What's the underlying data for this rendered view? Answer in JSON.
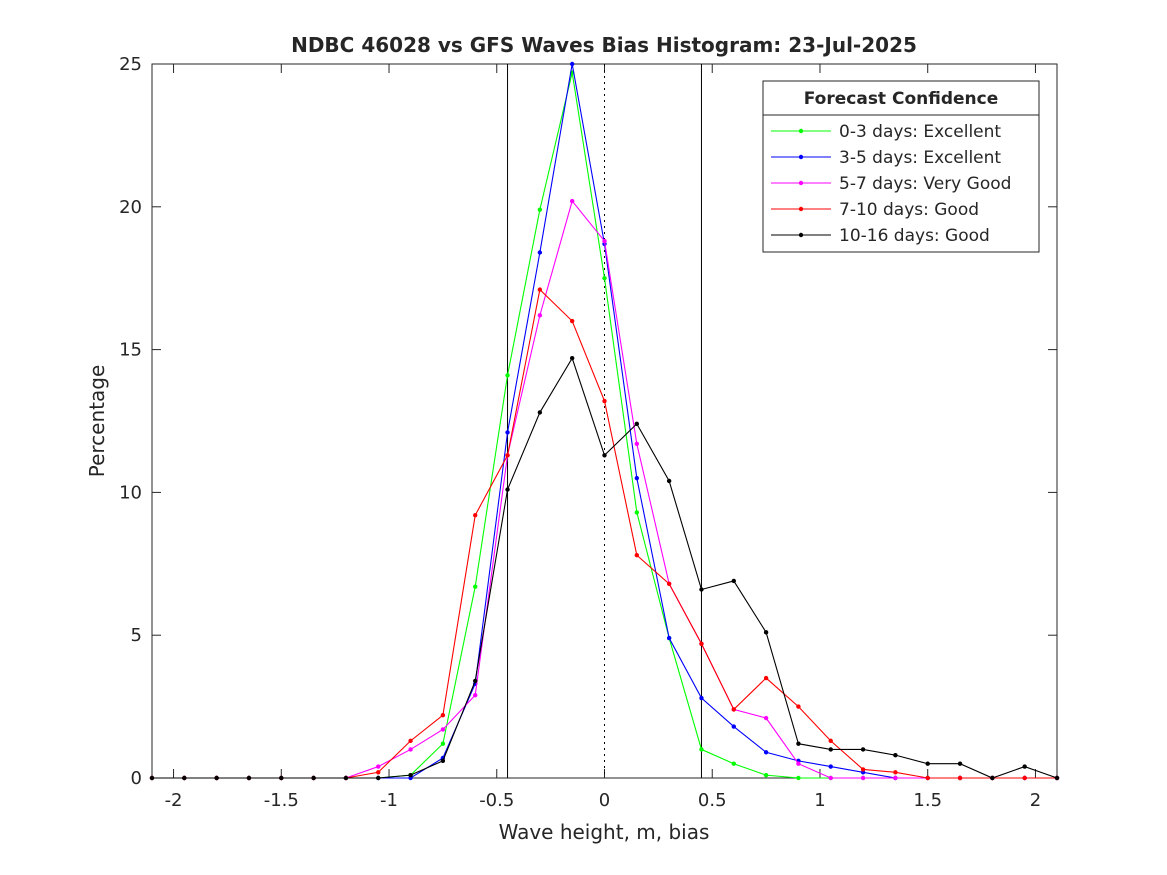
{
  "chart_data": {
    "type": "line",
    "title": "NDBC 46028 vs GFS Waves Bias Histogram: 23-Jul-2025",
    "xlabel": "Wave height, m, bias",
    "ylabel": "Percentage",
    "xlim": [
      -2.1,
      2.1
    ],
    "ylim": [
      0,
      25
    ],
    "xticks": [
      -2,
      -1.5,
      -1,
      -0.5,
      0,
      0.5,
      1,
      1.5,
      2
    ],
    "xtick_labels": [
      "-2",
      "-1.5",
      "-1",
      "-0.5",
      "0",
      "0.5",
      "1",
      "1.5",
      "2"
    ],
    "yticks": [
      0,
      5,
      10,
      15,
      20,
      25
    ],
    "ytick_labels": [
      "0",
      "5",
      "10",
      "15",
      "20",
      "25"
    ],
    "grid": false,
    "vertical_lines": [
      {
        "x": -0.45,
        "style": "solid"
      },
      {
        "x": 0,
        "style": "dotted"
      },
      {
        "x": 0.45,
        "style": "solid"
      }
    ],
    "legend": {
      "title": "Forecast Confidence",
      "placement": "top-right"
    },
    "x": [
      -2.1,
      -1.95,
      -1.8,
      -1.65,
      -1.5,
      -1.35,
      -1.2,
      -1.05,
      -0.9,
      -0.75,
      -0.6,
      -0.45,
      -0.3,
      -0.15,
      0,
      0.15,
      0.3,
      0.45,
      0.6,
      0.75,
      0.9,
      1.05,
      1.2,
      1.35,
      1.5,
      1.65,
      1.8,
      1.95,
      2.1
    ],
    "series": [
      {
        "name": "0-3 days: Excellent",
        "color": "#00ff00",
        "values": [
          0,
          0,
          0,
          0,
          0,
          0,
          0,
          0,
          0.1,
          1.2,
          6.7,
          14.1,
          19.9,
          24.7,
          17.5,
          9.3,
          4.9,
          1.0,
          0.5,
          0.1,
          0,
          0,
          0,
          0,
          0,
          0,
          0,
          0,
          0
        ]
      },
      {
        "name": "3-5 days: Excellent",
        "color": "#0000ff",
        "values": [
          0,
          0,
          0,
          0,
          0,
          0,
          0,
          0,
          0,
          0.7,
          3.3,
          12.1,
          18.4,
          25.0,
          18.7,
          10.5,
          4.9,
          2.8,
          1.8,
          0.9,
          0.6,
          0.4,
          0.2,
          0,
          0,
          0,
          0,
          0,
          0
        ]
      },
      {
        "name": "5-7 days: Very Good",
        "color": "#ff00ff",
        "values": [
          0,
          0,
          0,
          0,
          0,
          0,
          0,
          0.4,
          1.0,
          1.7,
          2.9,
          11.3,
          16.2,
          20.2,
          18.8,
          11.7,
          6.8,
          4.7,
          2.4,
          2.1,
          0.5,
          0,
          0,
          0,
          0,
          0,
          0,
          0,
          0
        ]
      },
      {
        "name": "7-10 days: Good",
        "color": "#ff0000",
        "values": [
          0,
          0,
          0,
          0,
          0,
          0,
          0,
          0.2,
          1.3,
          2.2,
          9.2,
          11.3,
          17.1,
          16.0,
          13.2,
          7.8,
          6.8,
          4.7,
          2.4,
          3.5,
          2.5,
          1.3,
          0.3,
          0.2,
          0,
          0,
          0,
          0,
          0
        ]
      },
      {
        "name": "10-16 days: Good",
        "color": "#000000",
        "values": [
          0,
          0,
          0,
          0,
          0,
          0,
          0,
          0,
          0.1,
          0.6,
          3.4,
          10.1,
          12.8,
          14.7,
          11.3,
          12.4,
          10.4,
          6.6,
          6.9,
          5.1,
          1.2,
          1.0,
          1.0,
          0.8,
          0.5,
          0.5,
          0,
          0.4,
          0
        ]
      }
    ]
  }
}
